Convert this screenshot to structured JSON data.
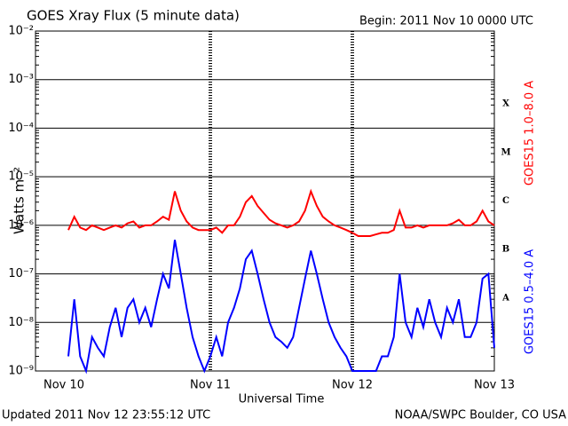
{
  "chart_data": {
    "type": "line",
    "title": "GOES Xray Flux (5 minute data)",
    "subtitle": "Begin:  2011 Nov 10 0000 UTC",
    "y_label": "Watts m⁻²",
    "x_label": "Universal Time",
    "footer_left": "Updated 2011 Nov 12 23:55:12 UTC",
    "footer_right": "NOAA/SWPC Boulder, CO USA",
    "log_scale": true,
    "grid": true,
    "ylim": [
      1e-09,
      0.01
    ],
    "yticks": [
      {
        "value": 1e-09,
        "label": "10⁻⁹"
      },
      {
        "value": 1e-08,
        "label": "10⁻⁸"
      },
      {
        "value": 1e-07,
        "label": "10⁻⁷"
      },
      {
        "value": 1e-06,
        "label": "10⁻⁶"
      },
      {
        "value": 1e-05,
        "label": "10⁻⁵"
      },
      {
        "value": 0.0001,
        "label": "10⁻⁴"
      },
      {
        "value": 0.001,
        "label": "10⁻³"
      },
      {
        "value": 0.01,
        "label": "10⁻²"
      }
    ],
    "xticks": [
      "Nov 10",
      "Nov 11",
      "Nov 12",
      "Nov 13"
    ],
    "flare_classes": [
      {
        "label": "A",
        "value": 1e-08
      },
      {
        "label": "B",
        "value": 1e-07
      },
      {
        "label": "C",
        "value": 1e-06
      },
      {
        "label": "M",
        "value": 1e-05
      },
      {
        "label": "X",
        "value": 0.0001
      }
    ],
    "series": [
      {
        "name": "GOES15 1.0–8.0 A",
        "color": "#ff0000",
        "values": [
          8e-07,
          1.5e-06,
          9e-07,
          8e-07,
          1e-06,
          9e-07,
          8e-07,
          9e-07,
          1e-06,
          9e-07,
          1.1e-06,
          1.2e-06,
          9e-07,
          1e-06,
          1e-06,
          1.2e-06,
          1.5e-06,
          1.3e-06,
          5e-06,
          2e-06,
          1.2e-06,
          9e-07,
          8e-07,
          8e-07,
          8e-07,
          9e-07,
          7e-07,
          1e-06,
          1e-06,
          1.5e-06,
          3e-06,
          4e-06,
          2.5e-06,
          1.8e-06,
          1.3e-06,
          1.1e-06,
          1e-06,
          9e-07,
          1e-06,
          1.2e-06,
          2e-06,
          5e-06,
          2.5e-06,
          1.5e-06,
          1.2e-06,
          1e-06,
          9e-07,
          8e-07,
          7e-07,
          6e-07,
          6e-07,
          6e-07,
          6.5e-07,
          7e-07,
          7e-07,
          8e-07,
          2e-06,
          9e-07,
          9e-07,
          1e-06,
          9e-07,
          1e-06,
          1e-06,
          1e-06,
          1e-06,
          1.1e-06,
          1.3e-06,
          1e-06,
          1e-06,
          1.2e-06,
          2e-06,
          1.2e-06,
          1e-06
        ]
      },
      {
        "name": "GOES15 0.5–4.0 A",
        "color": "#0000ff",
        "values": [
          2e-09,
          3e-08,
          2e-09,
          1e-09,
          5e-09,
          3e-09,
          2e-09,
          8e-09,
          2e-08,
          5e-09,
          2e-08,
          3e-08,
          1e-08,
          2e-08,
          8e-09,
          3e-08,
          1e-07,
          5e-08,
          5e-07,
          1e-07,
          2e-08,
          5e-09,
          2e-09,
          1e-09,
          2e-09,
          5e-09,
          2e-09,
          1e-08,
          2e-08,
          5e-08,
          2e-07,
          3e-07,
          1e-07,
          3e-08,
          1e-08,
          5e-09,
          4e-09,
          3e-09,
          5e-09,
          2e-08,
          8e-08,
          3e-07,
          1e-07,
          3e-08,
          1e-08,
          5e-09,
          3e-09,
          2e-09,
          1e-09,
          1e-09,
          1e-09,
          1e-09,
          1e-09,
          2e-09,
          2e-09,
          5e-09,
          1e-07,
          1e-08,
          5e-09,
          2e-08,
          8e-09,
          3e-08,
          1e-08,
          5e-09,
          2e-08,
          1e-08,
          3e-08,
          5e-09,
          5e-09,
          1e-08,
          8e-08,
          1e-07,
          3e-09
        ]
      }
    ]
  }
}
